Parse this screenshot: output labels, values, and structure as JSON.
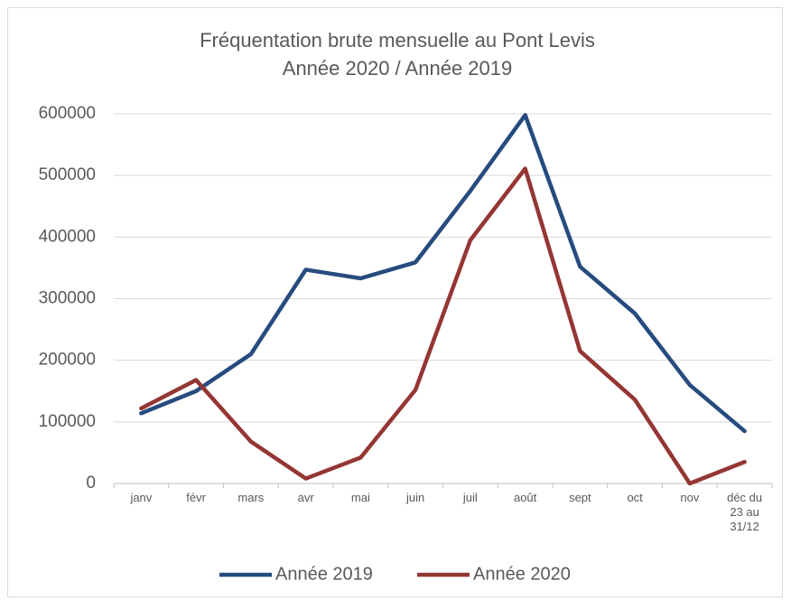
{
  "chart_data": {
    "type": "line",
    "title": "Fréquentation brute mensuelle au Pont Levis",
    "subtitle": "Année 2020 / Année 2019",
    "categories": [
      "janv",
      "févr",
      "mars",
      "avr",
      "mai",
      "juin",
      "juil",
      "août",
      "sept",
      "oct",
      "nov",
      "déc du 23 au 31/12"
    ],
    "series": [
      {
        "name": "Année 2019",
        "color": "#264b7e",
        "values": [
          114000,
          150000,
          210000,
          347000,
          333000,
          359000,
          475000,
          598000,
          352000,
          276000,
          160000,
          85000
        ]
      },
      {
        "name": "Année 2020",
        "color": "#943634",
        "values": [
          122000,
          168000,
          68000,
          8000,
          42000,
          152000,
          395000,
          511000,
          215000,
          136000,
          0,
          35000
        ]
      }
    ],
    "ylim": [
      0,
      600000
    ],
    "yticks": [
      0,
      100000,
      200000,
      300000,
      400000,
      500000,
      600000
    ],
    "grid": true,
    "legend": "bottom"
  }
}
